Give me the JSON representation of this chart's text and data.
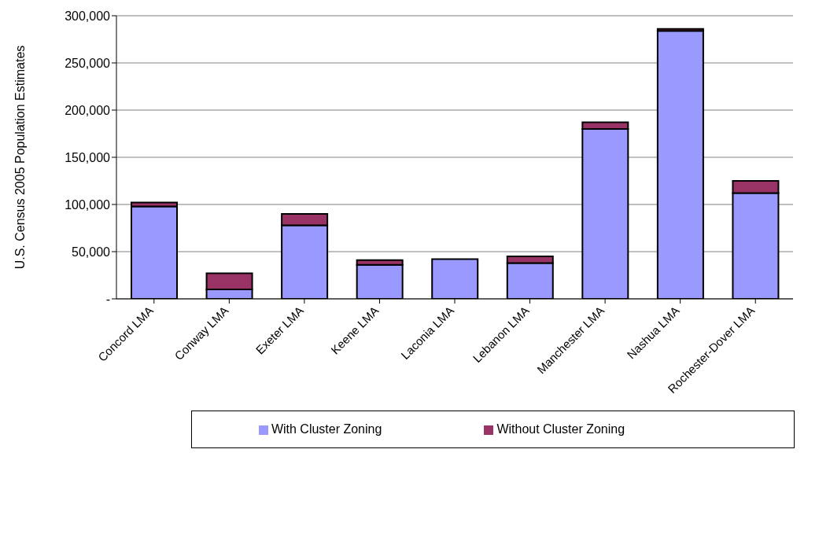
{
  "chart_data": {
    "type": "bar",
    "stacked": true,
    "ylabel": "U.S. Census 2005 Population Estimates",
    "categories": [
      "Concord LMA",
      "Conway LMA",
      "Exeter LMA",
      "Keene LMA",
      "Laconia LMA",
      "Lebanon LMA",
      "Manchester LMA",
      "Nashua LMA",
      "Rochester-Dover LMA"
    ],
    "series": [
      {
        "name": "With Cluster Zoning",
        "color": "#9999ff",
        "values": [
          98000,
          10000,
          78000,
          36000,
          42000,
          38000,
          180000,
          284000,
          112000
        ]
      },
      {
        "name": "Without Cluster Zoning",
        "color": "#993366",
        "values": [
          4000,
          17000,
          12000,
          5000,
          0,
          7000,
          7000,
          2000,
          13000
        ]
      }
    ],
    "ylim": [
      0,
      300000
    ],
    "yticks": [
      {
        "value": 0,
        "label": "-"
      },
      {
        "value": 50000,
        "label": "50,000"
      },
      {
        "value": 100000,
        "label": "100,000"
      },
      {
        "value": 150000,
        "label": "150,000"
      },
      {
        "value": 200000,
        "label": "200,000"
      },
      {
        "value": 250000,
        "label": "250,000"
      },
      {
        "value": 300000,
        "label": "300,000"
      }
    ],
    "grid": "y",
    "legend": "bottom"
  }
}
